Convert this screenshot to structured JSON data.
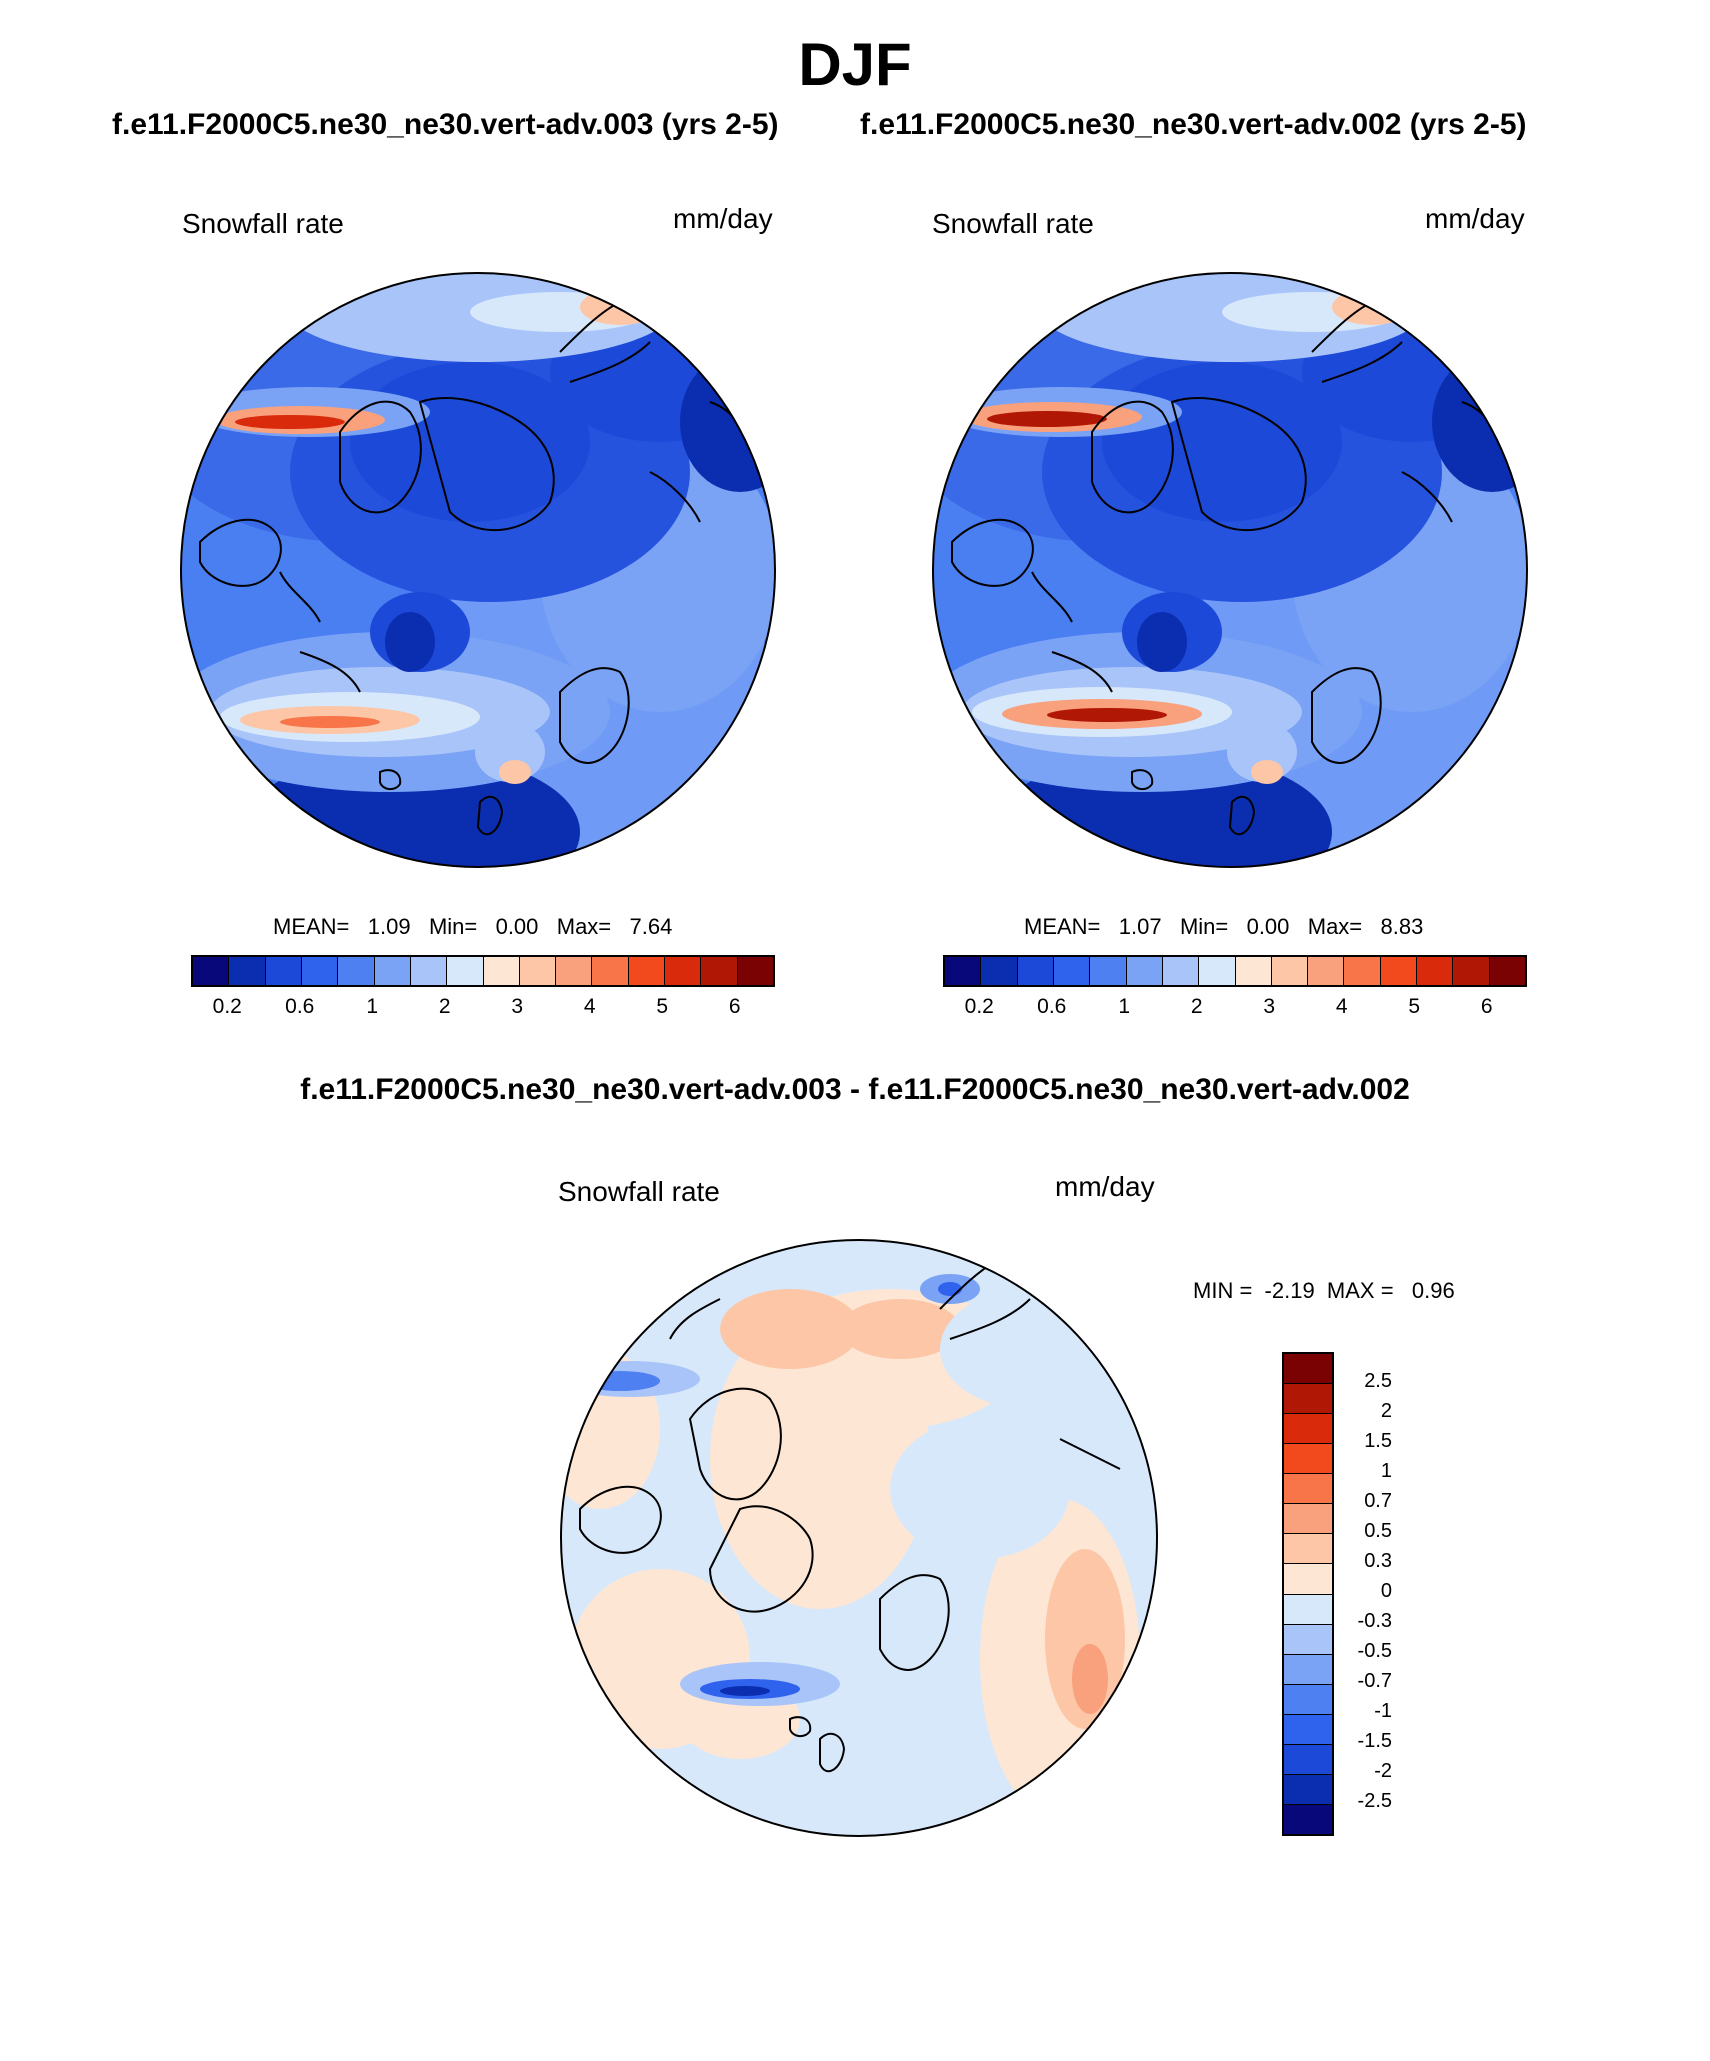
{
  "figure": {
    "title": "DJF",
    "case1_title": "f.e11.F2000C5.ne30_ne30.vert-adv.003 (yrs 2-5)",
    "case2_title": "f.e11.F2000C5.ne30_ne30.vert-adv.002 (yrs 2-5)",
    "diff_title": "f.e11.F2000C5.ne30_ne30.vert-adv.003 - f.e11.F2000C5.ne30_ne30.vert-adv.002"
  },
  "panels": {
    "left": {
      "variable": "Snowfall rate",
      "units": "mm/day",
      "mean_label": "MEAN=",
      "mean": "1.09",
      "min_label": "Min=",
      "min": "0.00",
      "max_label": "Max=",
      "max": "7.64"
    },
    "right": {
      "variable": "Snowfall rate",
      "units": "mm/day",
      "mean_label": "MEAN=",
      "mean": "1.07",
      "min_label": "Min=",
      "min": "0.00",
      "max_label": "Max=",
      "max": "8.83"
    },
    "diff": {
      "variable": "Snowfall rate",
      "units": "mm/day",
      "min_label": "MIN =",
      "min": "-2.19",
      "max_label": "MAX =",
      "max": "0.96"
    }
  },
  "colorbar": {
    "ticks": [
      "0.2",
      "0.6",
      "1",
      "2",
      "3",
      "4",
      "5",
      "6"
    ],
    "colors": [
      "#08087a",
      "#0b2db0",
      "#1d49d8",
      "#2f63ee",
      "#4f80f2",
      "#7aa3f6",
      "#a8c4f9",
      "#d8e8fb",
      "#fde6d4",
      "#fcc6a7",
      "#f9a07c",
      "#f77548",
      "#f24a1c",
      "#d92a0c",
      "#b01705",
      "#7a0202"
    ]
  },
  "diff_colorbar": {
    "ticks": [
      "2.5",
      "2",
      "1.5",
      "1",
      "0.7",
      "0.5",
      "0.3",
      "0",
      "-0.3",
      "-0.5",
      "-0.7",
      "-1",
      "-1.5",
      "-2",
      "-2.5"
    ],
    "colors": [
      "#7a0202",
      "#b01705",
      "#d92a0c",
      "#f24a1c",
      "#f77548",
      "#f9a07c",
      "#fcc6a7",
      "#fde6d4",
      "#d8e8fb",
      "#a8c4f9",
      "#7aa3f6",
      "#4f80f2",
      "#2f63ee",
      "#1d49d8",
      "#0b2db0",
      "#08087a"
    ]
  }
}
